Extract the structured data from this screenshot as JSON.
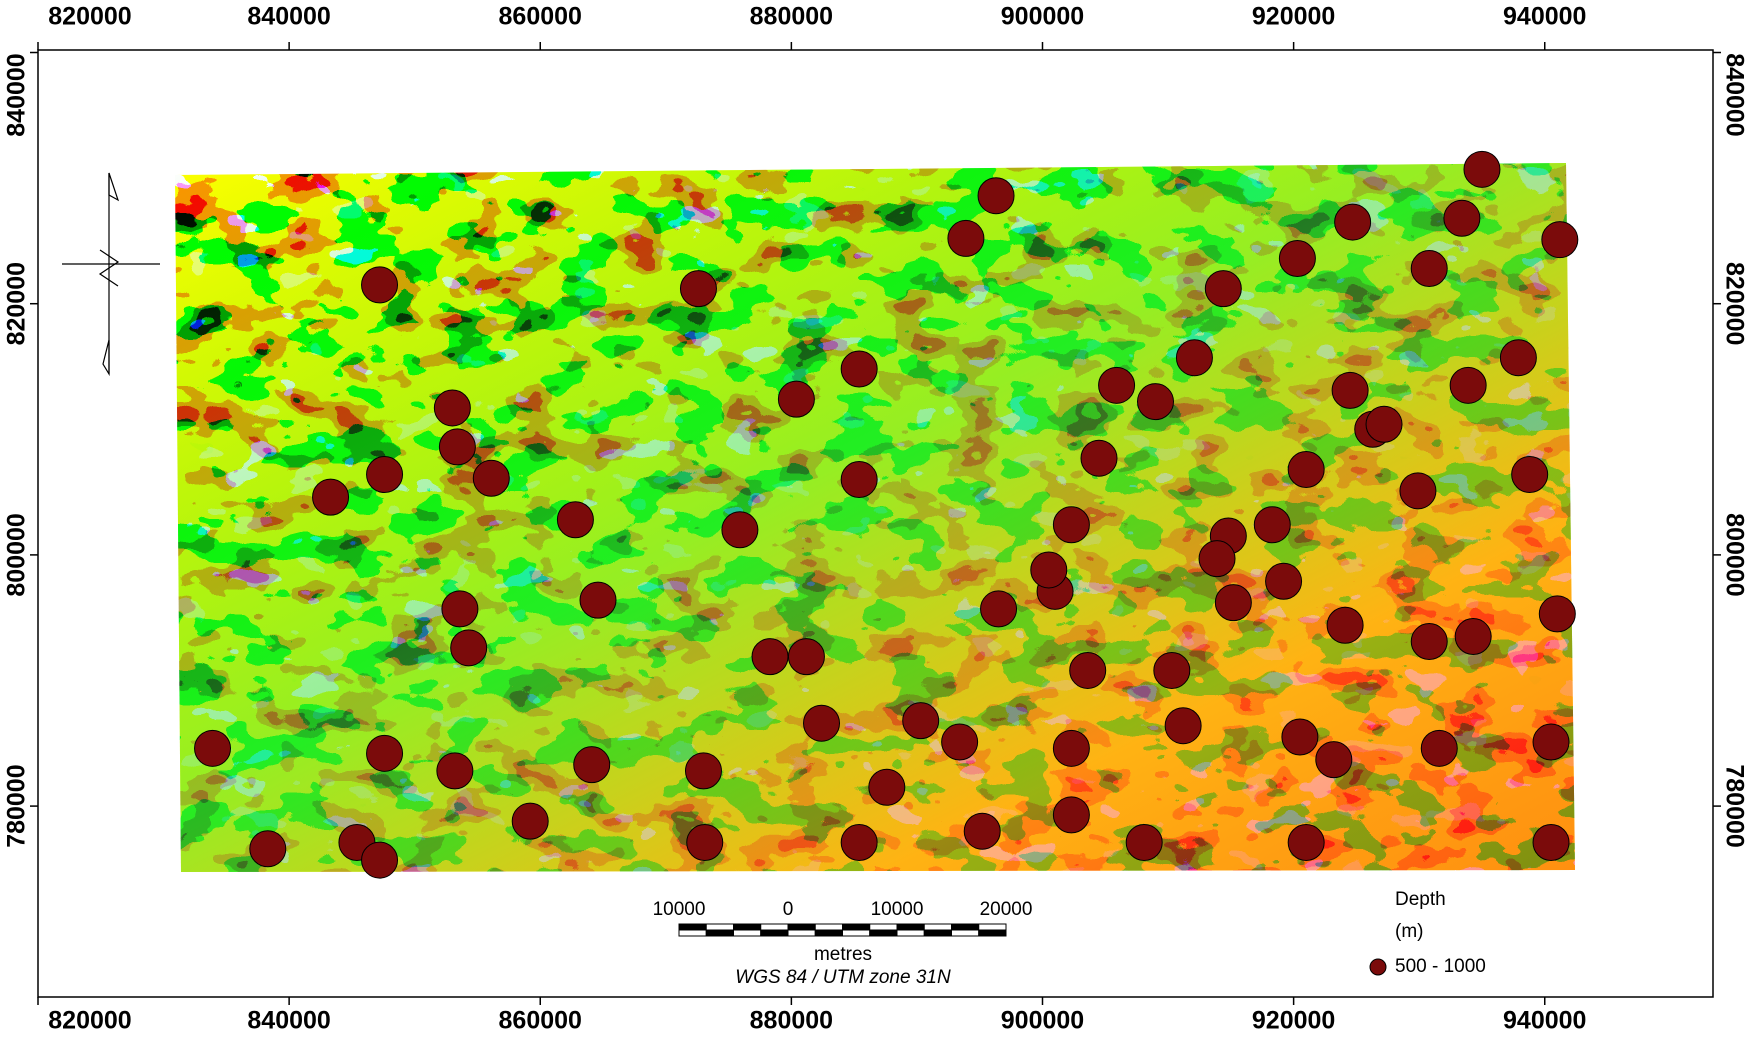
{
  "chart_data": {
    "type": "scatter",
    "xlim": [
      820000,
      953400
    ],
    "ylim": [
      764800,
      840200
    ],
    "xticks": [
      820000,
      840000,
      860000,
      880000,
      900000,
      920000,
      940000
    ],
    "yticks": [
      780000,
      800000,
      820000,
      840000
    ],
    "legend_title": [
      "Depth",
      "(m)"
    ],
    "series": [
      {
        "name": "500 - 1000",
        "color": "#7b0b0b",
        "x": [
          847200,
          872600,
          896300,
          893900,
          935000,
          924700,
          914400,
          920300,
          930800,
          941200,
          933400,
          885400,
          880400,
          853000,
          853400,
          856100,
          843300,
          847600,
          862800,
          875900,
          885400,
          864600,
          853600,
          854300,
          833900,
          838300,
          845400,
          847200,
          847600,
          853200,
          859200,
          864100,
          873000,
          873100,
          878300,
          881200,
          882400,
          885400,
          887600,
          890300,
          893400,
          895200,
          896500,
          901000,
          902300,
          904500,
          905900,
          909000,
          912100,
          902300,
          902300,
          910300,
          914800,
          915200,
          921000,
          924500,
          926300,
          924100,
          920500,
          923200,
          921000,
          930800,
          931600,
          934300,
          941000,
          940500,
          940500,
          937900,
          933900,
          938800,
          929900,
          911200,
          908100,
          913900,
          900500,
          903600,
          927200,
          919200,
          918300
        ],
        "y": [
          821500,
          821200,
          828600,
          825200,
          830700,
          826500,
          821200,
          823600,
          822800,
          825100,
          826800,
          814800,
          812400,
          811700,
          808600,
          806100,
          804600,
          806400,
          802800,
          802000,
          806000,
          796400,
          795700,
          792600,
          784600,
          776600,
          777100,
          775700,
          784200,
          782800,
          778800,
          783300,
          782800,
          777100,
          791900,
          791900,
          786600,
          777100,
          781500,
          786800,
          785100,
          778000,
          795700,
          797100,
          802400,
          807700,
          813500,
          812200,
          815700,
          784600,
          779300,
          790800,
          801500,
          796200,
          806800,
          813100,
          810000,
          794400,
          785500,
          783700,
          777100,
          793100,
          784600,
          793500,
          795300,
          785100,
          777100,
          815700,
          813500,
          806400,
          805100,
          786400,
          777100,
          799700,
          798800,
          790800,
          810400,
          797900,
          802400
        ]
      }
    ],
    "scalebar": {
      "labels": [
        "10000",
        "0",
        "10000",
        "20000"
      ],
      "unit": "metres",
      "projection": "WGS 84 / UTM zone 31N"
    }
  }
}
